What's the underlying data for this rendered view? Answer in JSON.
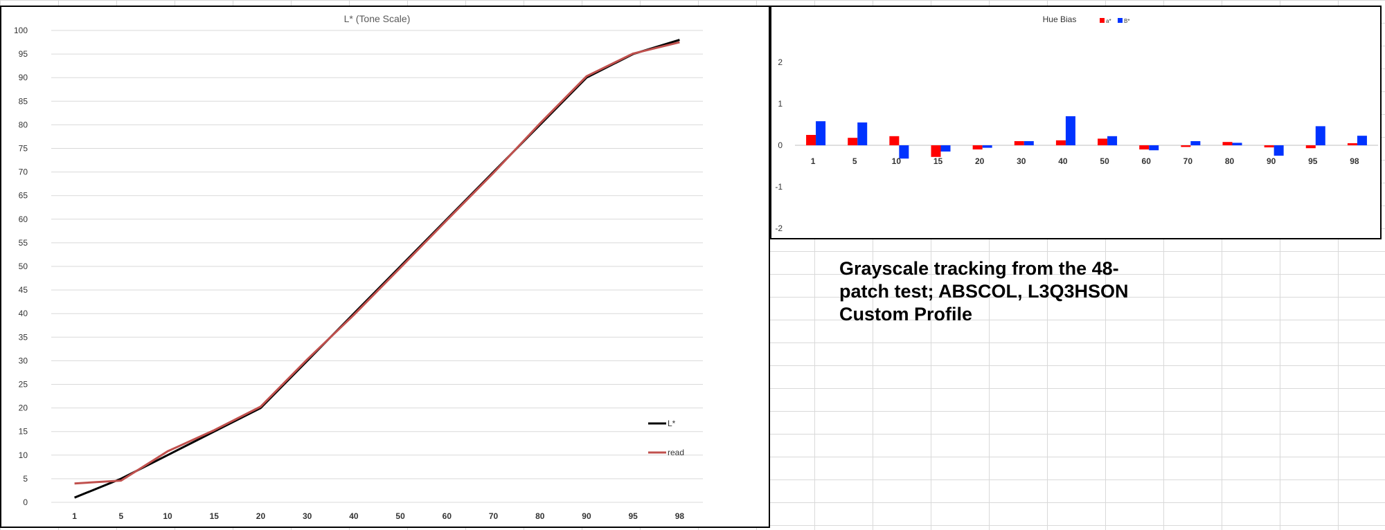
{
  "chart_data": [
    {
      "type": "line",
      "title": "L* (Tone Scale)",
      "xlabel": "",
      "ylabel": "",
      "categories": [
        "1",
        "5",
        "10",
        "15",
        "20",
        "30",
        "40",
        "50",
        "60",
        "70",
        "80",
        "90",
        "95",
        "98"
      ],
      "ylim": [
        0,
        100
      ],
      "yticks": [
        0,
        5,
        10,
        15,
        20,
        25,
        30,
        35,
        40,
        45,
        50,
        55,
        60,
        65,
        70,
        75,
        80,
        85,
        90,
        95,
        100
      ],
      "grid": true,
      "legend_position": "bottom-right",
      "series": [
        {
          "name": "L*",
          "color": "#000000",
          "values": [
            1,
            5,
            10,
            15,
            20,
            30,
            40,
            50,
            60,
            70,
            80,
            90,
            95,
            98
          ]
        },
        {
          "name": "read",
          "color": "#c0504d",
          "values": [
            4,
            4.6,
            10.8,
            15.3,
            20.3,
            30.3,
            39.7,
            49.7,
            59.8,
            69.8,
            80.3,
            90.3,
            95.1,
            97.5
          ]
        }
      ]
    },
    {
      "type": "bar",
      "title": "Hue Bias",
      "xlabel": "",
      "ylabel": "",
      "categories": [
        "1",
        "5",
        "10",
        "15",
        "20",
        "30",
        "40",
        "50",
        "60",
        "70",
        "80",
        "90",
        "95",
        "98"
      ],
      "ylim": [
        -2,
        2.5
      ],
      "yticks": [
        -2,
        -1,
        0,
        1,
        2
      ],
      "grid": false,
      "legend_position": "top",
      "series": [
        {
          "name": "a*",
          "color": "#ff0000",
          "values": [
            0.25,
            0.18,
            0.22,
            -0.28,
            -0.1,
            0.1,
            0.12,
            0.16,
            -0.1,
            -0.04,
            0.08,
            -0.05,
            -0.07,
            0.05
          ]
        },
        {
          "name": "B*",
          "color": "#0033ff",
          "values": [
            0.58,
            0.55,
            -0.32,
            -0.15,
            -0.06,
            0.1,
            0.7,
            0.22,
            -0.12,
            0.1,
            0.06,
            -0.25,
            0.46,
            0.23
          ]
        }
      ]
    }
  ],
  "caption": "Grayscale tracking from the 48-patch test; ABSCOL, L3Q3HSON Custom Profile"
}
